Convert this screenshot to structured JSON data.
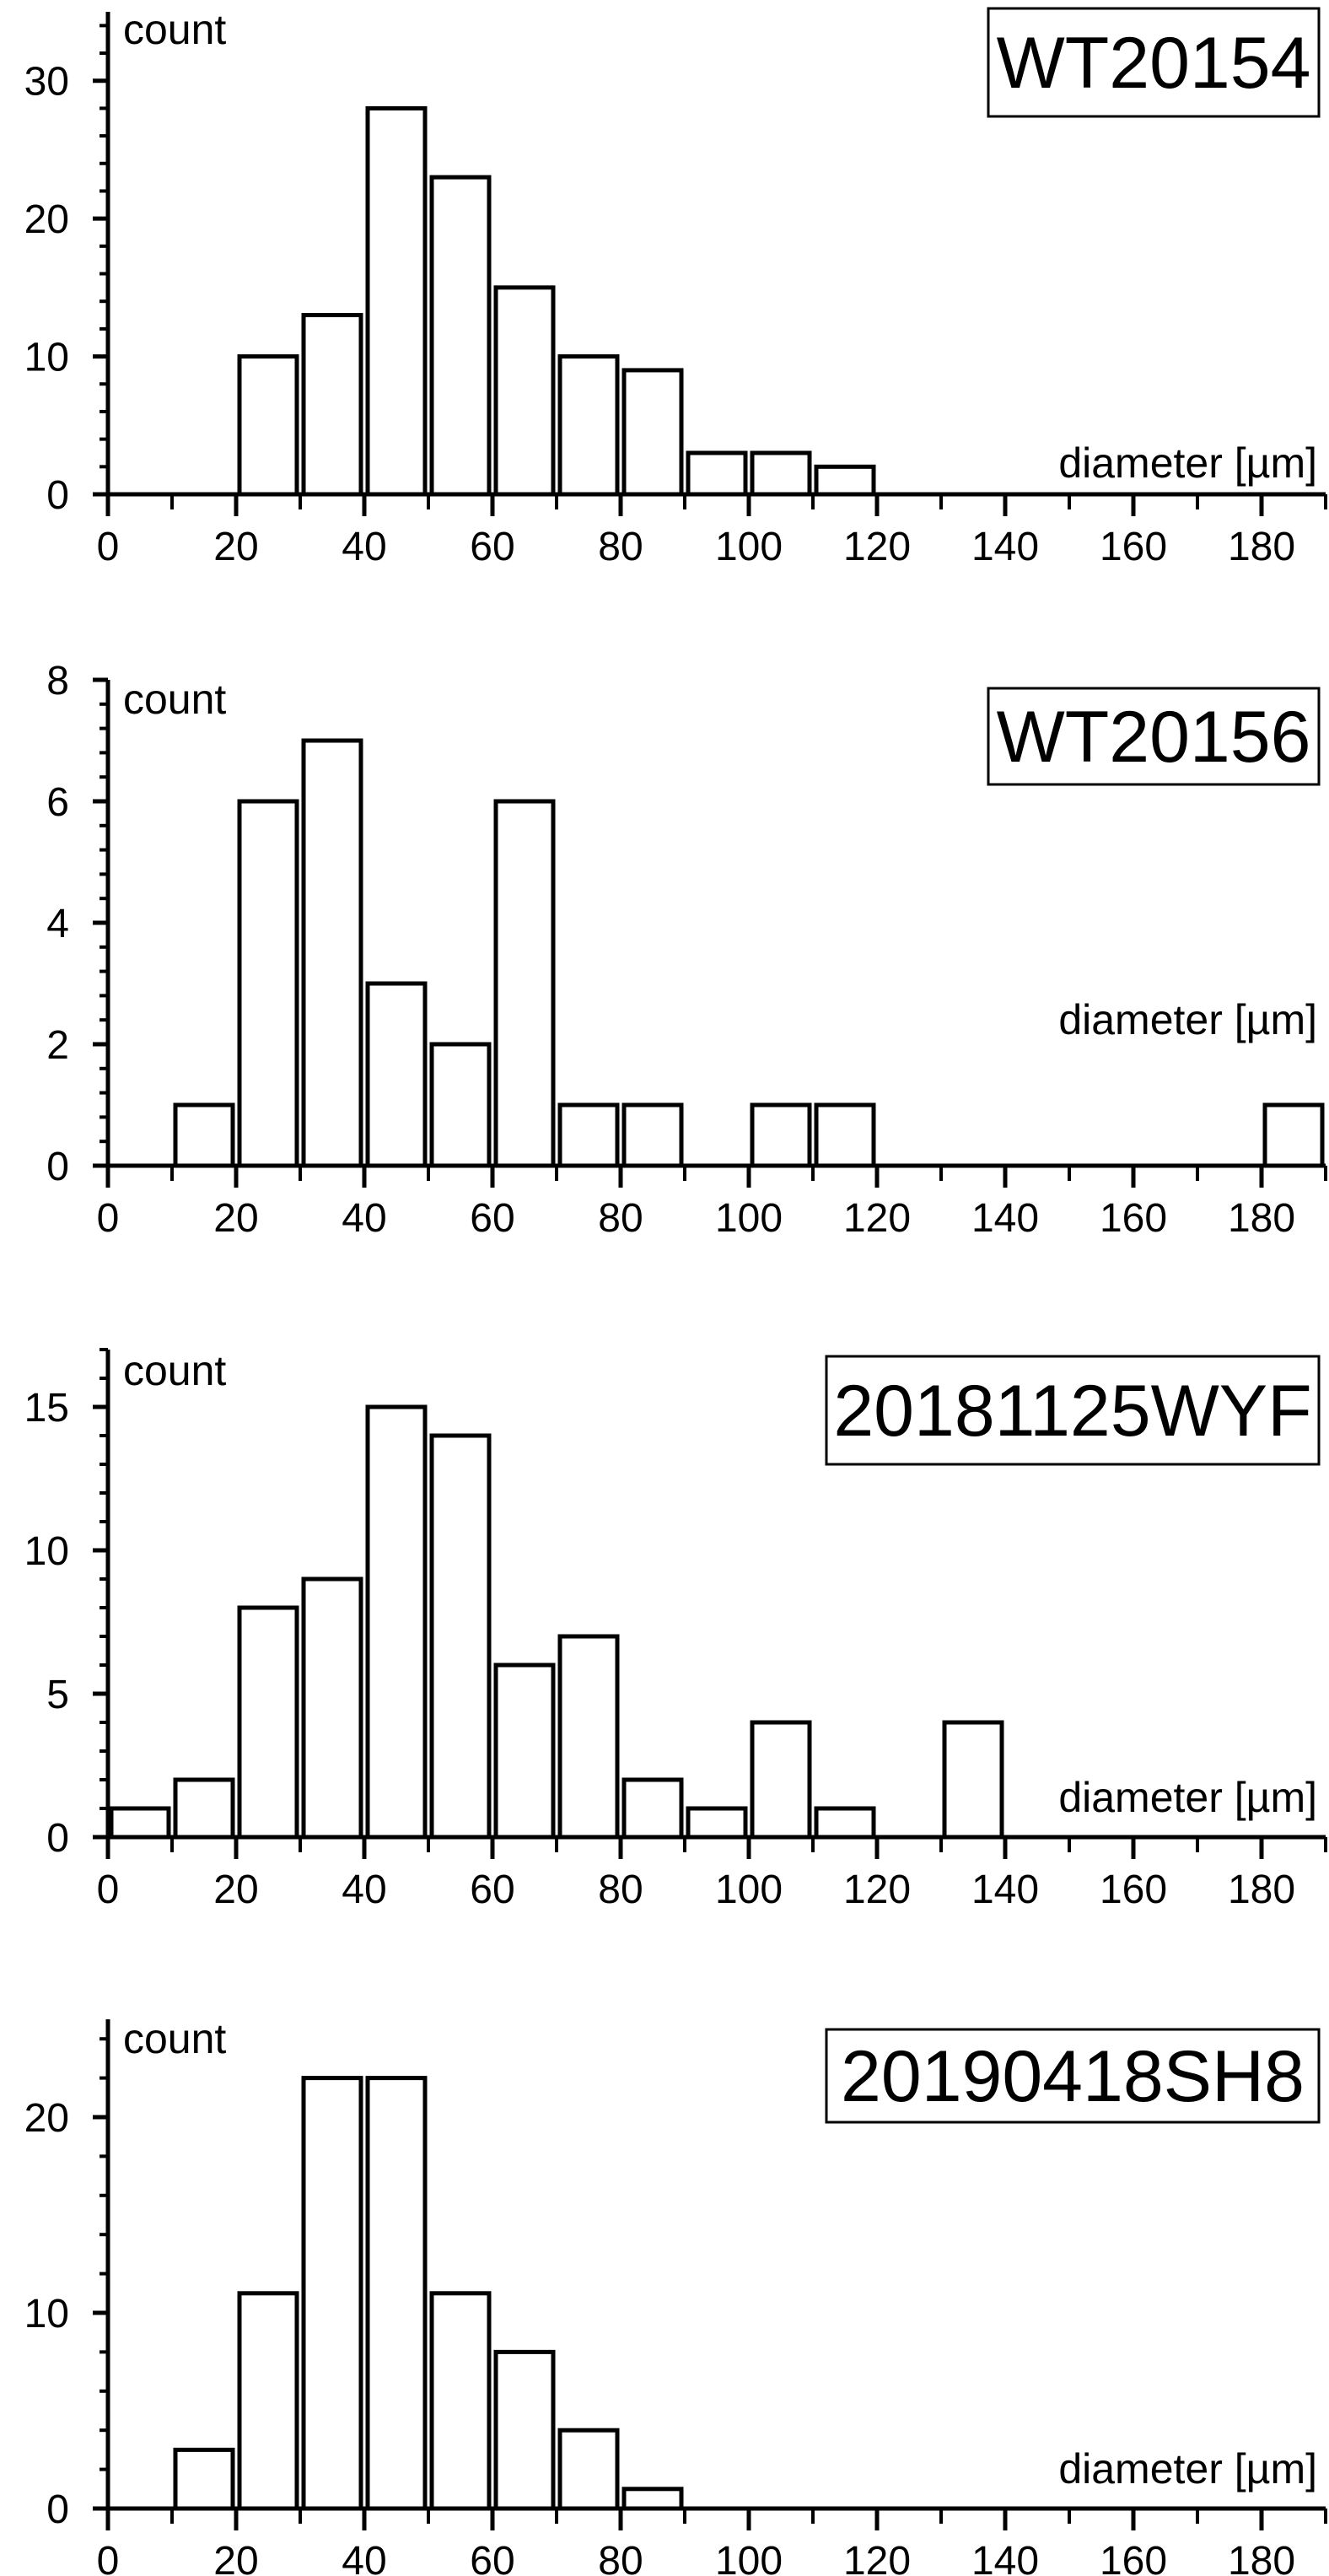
{
  "chart_data": [
    {
      "type": "bar",
      "title": "WT20154",
      "xlabel": "diameter [µm]",
      "ylabel": "count",
      "xlim": [
        0,
        190
      ],
      "ylim": [
        0,
        35
      ],
      "x_ticks": [
        0,
        20,
        40,
        60,
        80,
        100,
        120,
        140,
        160,
        180
      ],
      "y_ticks": [
        0,
        10,
        20,
        30
      ],
      "bin_width": 10,
      "bins": [
        0,
        10,
        20,
        30,
        40,
        50,
        60,
        70,
        80,
        90,
        100,
        110,
        120,
        130,
        140,
        150,
        160,
        170,
        180
      ],
      "values": [
        0,
        0,
        10,
        13,
        28,
        23,
        15,
        10,
        9,
        3,
        3,
        2,
        0,
        0,
        0,
        0,
        0,
        0,
        0
      ]
    },
    {
      "type": "bar",
      "title": "WT20156",
      "xlabel": "diameter [µm]",
      "ylabel": "count",
      "xlim": [
        0,
        190
      ],
      "ylim": [
        0,
        8
      ],
      "x_ticks": [
        0,
        20,
        40,
        60,
        80,
        100,
        120,
        140,
        160,
        180
      ],
      "y_ticks": [
        0,
        2,
        4,
        6,
        8
      ],
      "bin_width": 10,
      "bins": [
        0,
        10,
        20,
        30,
        40,
        50,
        60,
        70,
        80,
        90,
        100,
        110,
        120,
        130,
        140,
        150,
        160,
        170,
        180
      ],
      "values": [
        0,
        1,
        6,
        7,
        3,
        2,
        6,
        1,
        1,
        0,
        1,
        1,
        0,
        0,
        0,
        0,
        0,
        0,
        1
      ]
    },
    {
      "type": "bar",
      "title": "20181125WYF",
      "xlabel": "diameter [µm]",
      "ylabel": "count",
      "xlim": [
        0,
        190
      ],
      "ylim": [
        0,
        17
      ],
      "x_ticks": [
        0,
        20,
        40,
        60,
        80,
        100,
        120,
        140,
        160,
        180
      ],
      "y_ticks": [
        0,
        5,
        10,
        15
      ],
      "bin_width": 10,
      "bins": [
        0,
        10,
        20,
        30,
        40,
        50,
        60,
        70,
        80,
        90,
        100,
        110,
        120,
        130,
        140,
        150,
        160,
        170,
        180
      ],
      "values": [
        1,
        2,
        8,
        9,
        15,
        14,
        6,
        7,
        2,
        1,
        4,
        1,
        0,
        4,
        0,
        0,
        0,
        0,
        0
      ]
    },
    {
      "type": "bar",
      "title": "20190418SH8",
      "xlabel": "diameter [µm]",
      "ylabel": "count",
      "xlim": [
        0,
        190
      ],
      "ylim": [
        0,
        25
      ],
      "x_ticks": [
        0,
        20,
        40,
        60,
        80,
        100,
        120,
        140,
        160,
        180
      ],
      "y_ticks": [
        0,
        10,
        20
      ],
      "bin_width": 10,
      "bins": [
        0,
        10,
        20,
        30,
        40,
        50,
        60,
        70,
        80,
        90,
        100,
        110,
        120,
        130,
        140,
        150,
        160,
        170,
        180
      ],
      "values": [
        0,
        3,
        11,
        22,
        22,
        11,
        8,
        4,
        1,
        0,
        0,
        0,
        0,
        0,
        0,
        0,
        0,
        0,
        0
      ]
    }
  ]
}
